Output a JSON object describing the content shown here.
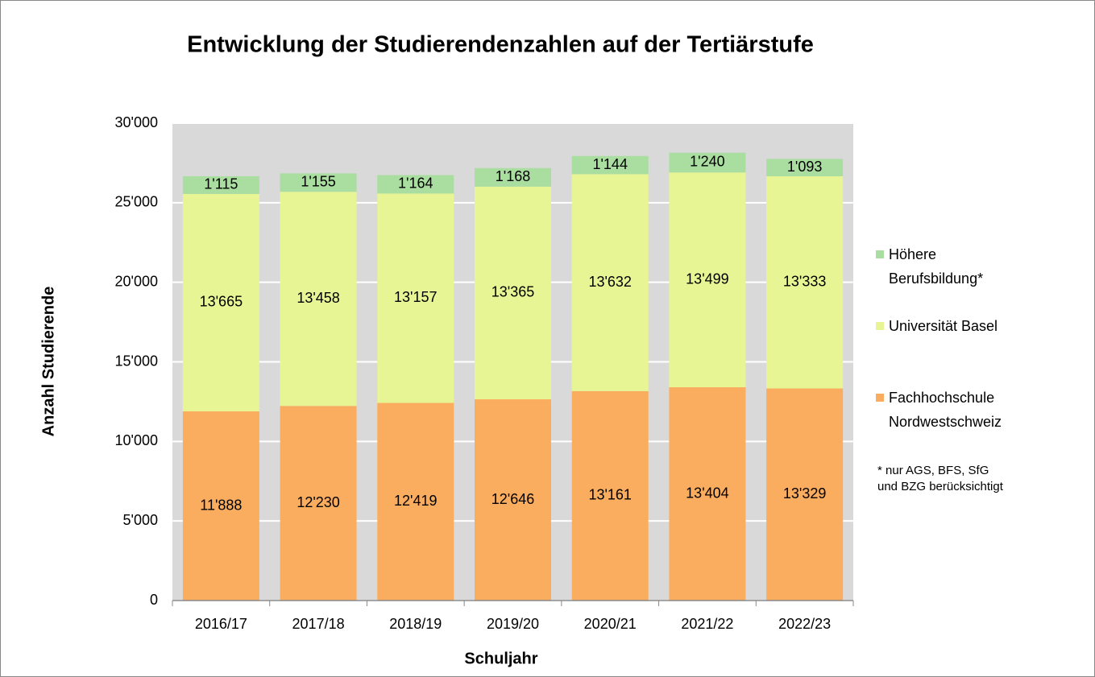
{
  "chart_data": {
    "type": "stacked_bar",
    "title": "Entwicklung der Studierendenzahlen auf der Tertiärstufe",
    "x_label": "Schuljahr",
    "y_label": "Anzahl Studierende",
    "categories": [
      "2016/17",
      "2017/18",
      "2018/19",
      "2019/20",
      "2020/21",
      "2021/22",
      "2022/23"
    ],
    "series": [
      {
        "name": "Fachhochschule Nordwestschweiz",
        "color": "#fbad5f",
        "values": [
          11888,
          12230,
          12419,
          12646,
          13161,
          13404,
          13329
        ],
        "value_labels": [
          "11'888",
          "12'230",
          "12'419",
          "12'646",
          "13'161",
          "13'404",
          "13'329"
        ]
      },
      {
        "name": "Universität Basel",
        "color": "#e8f595",
        "values": [
          13665,
          13458,
          13157,
          13365,
          13632,
          13499,
          13333
        ],
        "value_labels": [
          "13'665",
          "13'458",
          "13'157",
          "13'365",
          "13'632",
          "13'499",
          "13'333"
        ]
      },
      {
        "name": "Höhere Berufsbildung*",
        "color": "#a9dea0",
        "values": [
          1115,
          1155,
          1164,
          1168,
          1144,
          1240,
          1093
        ],
        "value_labels": [
          "1'115",
          "1'155",
          "1'164",
          "1'168",
          "1'144",
          "1'240",
          "1'093"
        ]
      }
    ],
    "ylim": [
      0,
      30000
    ],
    "yticks": [
      0,
      {
        "value": 5000,
        "label": "5'000"
      },
      {
        "value": 10000,
        "label": "10'000"
      },
      {
        "value": 15000,
        "label": "15'000"
      },
      {
        "value": 20000,
        "label": "20'000"
      },
      {
        "value": 25000,
        "label": "25'000"
      },
      {
        "value": 30000,
        "label": "30'000"
      }
    ],
    "grid": true,
    "legend_position": "right",
    "footnote": [
      "* nur AGS, BFS, SfG",
      "und BZG berücksichtigt"
    ]
  }
}
